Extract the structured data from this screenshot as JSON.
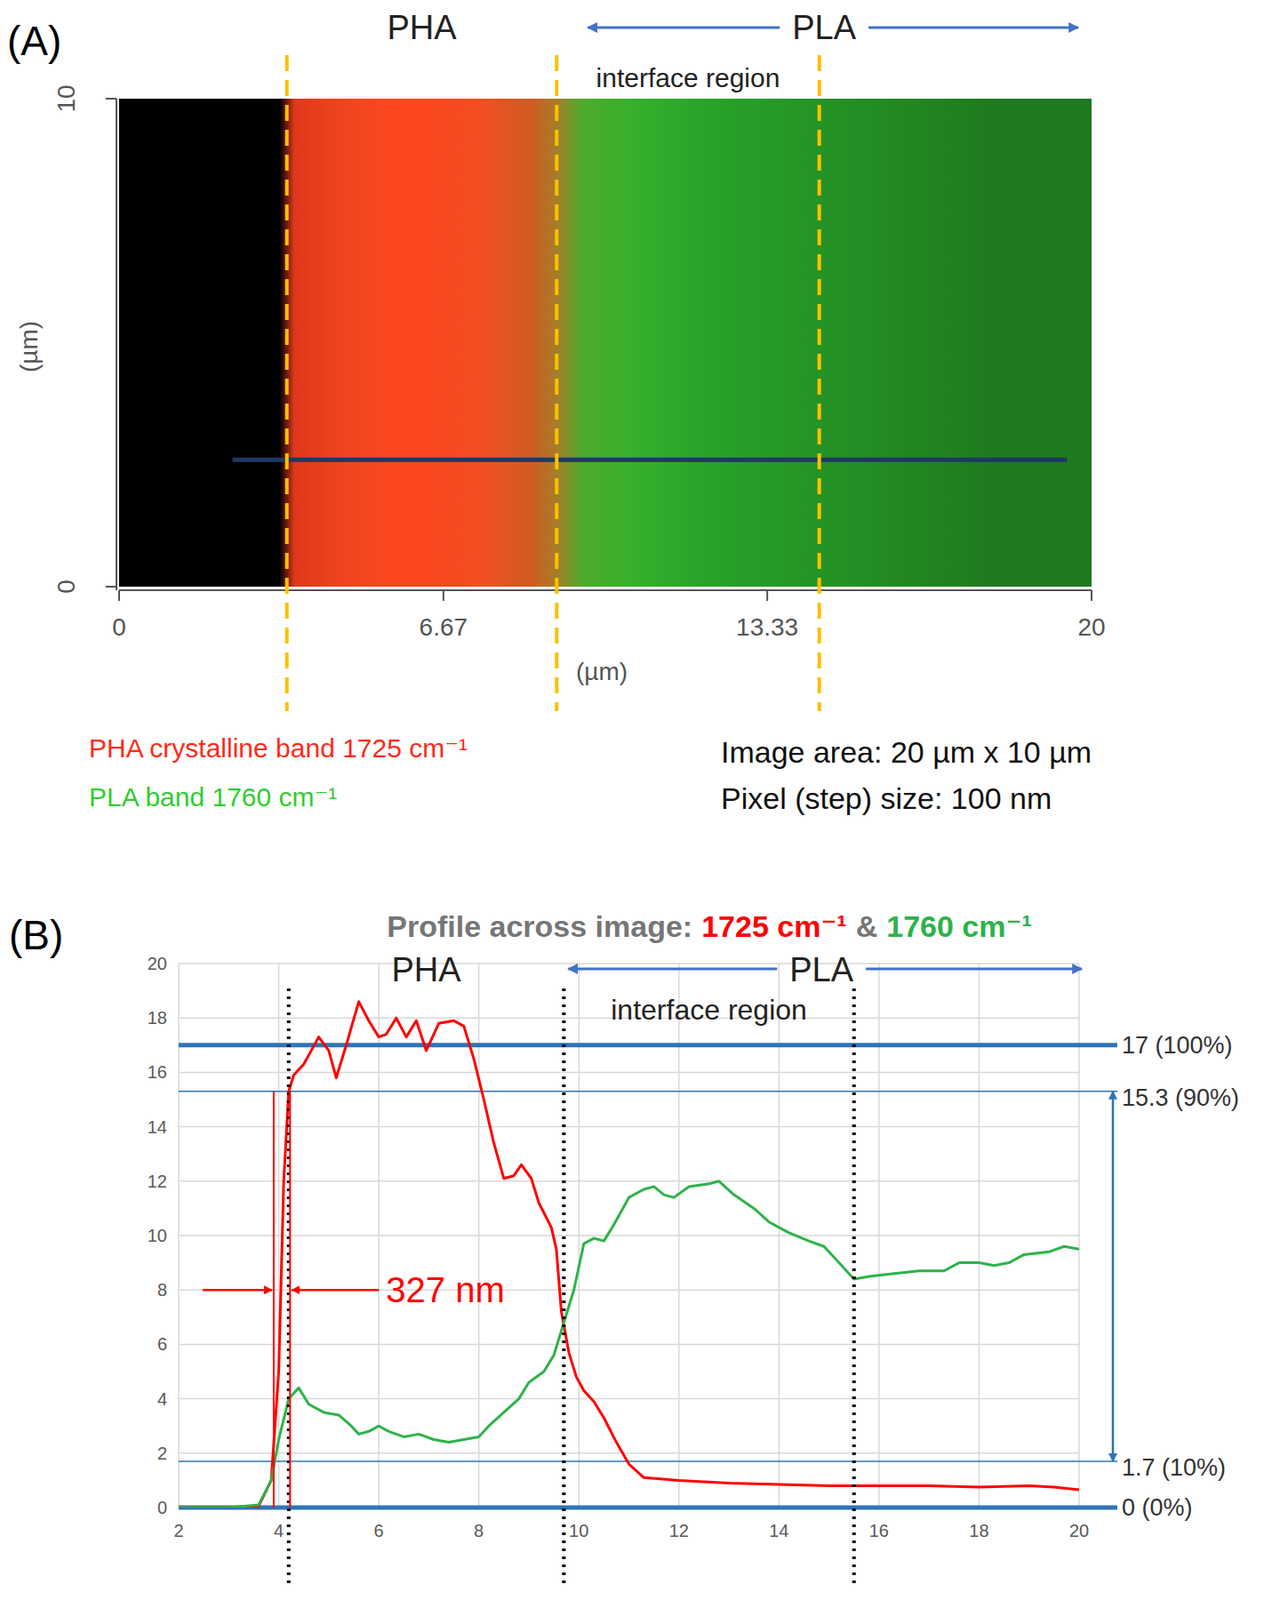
{
  "chart_data": [
    {
      "type": "image",
      "panel_label": "(A)",
      "xlabel": "(µm)",
      "ylabel": "(µm)",
      "xlim": [
        0,
        20
      ],
      "ylim": [
        0,
        10
      ],
      "xticks": [
        0,
        6.67,
        13.33,
        20
      ],
      "yticks": [
        0,
        10
      ],
      "x": [
        0,
        3.3,
        3.6,
        4.5,
        5.5,
        6.5,
        7.5,
        8.5,
        9.0,
        9.5,
        10.5,
        12,
        13.5,
        15,
        16.5,
        18,
        20
      ],
      "series": [
        {
          "name": "PHA crystalline band 1725 cm⁻¹",
          "color": "#ff2a1a",
          "values": [
            0,
            0,
            0.85,
            0.9,
            0.95,
            0.95,
            0.9,
            0.75,
            0.55,
            0.15,
            0.05,
            0,
            0,
            0,
            0,
            0,
            0
          ]
        },
        {
          "name": "PLA band 1760 cm⁻¹",
          "color": "#33cc33",
          "values": [
            0,
            0,
            0.1,
            0.15,
            0.15,
            0.15,
            0.2,
            0.3,
            0.5,
            0.8,
            0.85,
            0.8,
            0.75,
            0.7,
            0.65,
            0.6,
            0.6
          ]
        }
      ],
      "labels": {
        "pha": "PHA",
        "pla": "PLA",
        "interface": "interface region"
      },
      "dividers": [
        3.45,
        9.0,
        14.4
      ],
      "profile_line": {
        "y": 2.6,
        "x": [
          2.33,
          19.5
        ]
      },
      "notes": [
        "Image area: 20 µm x 10 µm",
        "Pixel (step) size: 100 nm"
      ]
    },
    {
      "type": "line",
      "panel_label": "(B)",
      "title": "Profile across image:",
      "title_joiner": "&",
      "xlim": [
        2,
        20
      ],
      "ylim": [
        0,
        20
      ],
      "xticks": [
        2,
        4,
        6,
        8,
        10,
        12,
        14,
        16,
        18,
        20
      ],
      "yticks": [
        0,
        2,
        4,
        6,
        8,
        10,
        12,
        14,
        16,
        18,
        20
      ],
      "grid": true,
      "series": [
        {
          "name": "1725 cm⁻¹",
          "color": "#ff0000",
          "x": [
            2,
            3,
            3.6,
            3.85,
            4.0,
            4.1,
            4.2,
            4.3,
            4.5,
            4.8,
            5.0,
            5.15,
            5.35,
            5.6,
            5.8,
            6.0,
            6.15,
            6.35,
            6.55,
            6.75,
            6.95,
            7.2,
            7.5,
            7.7,
            7.9,
            8.1,
            8.3,
            8.5,
            8.7,
            8.85,
            9.05,
            9.2,
            9.45,
            9.55,
            9.65,
            9.8,
            9.95,
            10.1,
            10.3,
            10.5,
            10.75,
            11,
            11.3,
            12,
            13,
            14,
            15,
            16,
            17,
            18,
            19,
            19.5,
            20
          ],
          "values": [
            0,
            0,
            0.05,
            1,
            5,
            12,
            15.3,
            15.9,
            16.3,
            17.3,
            16.8,
            15.8,
            17,
            18.6,
            17.9,
            17.3,
            17.4,
            18,
            17.3,
            17.9,
            16.8,
            17.8,
            17.9,
            17.7,
            16.5,
            15,
            13.4,
            12.1,
            12.2,
            12.6,
            12.1,
            11.2,
            10.3,
            9.5,
            7.2,
            5.7,
            4.8,
            4.3,
            3.9,
            3.3,
            2.4,
            1.6,
            1.1,
            1.0,
            0.9,
            0.85,
            0.8,
            0.8,
            0.8,
            0.75,
            0.8,
            0.75,
            0.65
          ]
        },
        {
          "name": "1760 cm⁻¹",
          "color": "#2db34a",
          "x": [
            2,
            3,
            3.6,
            3.85,
            4.0,
            4.2,
            4.4,
            4.6,
            4.9,
            5.2,
            5.45,
            5.6,
            5.8,
            6.0,
            6.2,
            6.5,
            6.8,
            7.1,
            7.4,
            7.7,
            8.0,
            8.2,
            8.5,
            8.8,
            9.0,
            9.3,
            9.5,
            9.7,
            9.9,
            10.1,
            10.3,
            10.5,
            10.7,
            11,
            11.3,
            11.5,
            11.7,
            11.9,
            12.2,
            12.6,
            12.8,
            13.1,
            13.5,
            13.8,
            14.2,
            14.6,
            14.9,
            15.2,
            15.5,
            15.8,
            16.3,
            16.8,
            17.3,
            17.6,
            18,
            18.3,
            18.6,
            18.9,
            19.4,
            19.7,
            20
          ],
          "values": [
            0,
            0,
            0.1,
            1,
            2.5,
            4.0,
            4.4,
            3.8,
            3.5,
            3.4,
            3.0,
            2.7,
            2.8,
            3.0,
            2.8,
            2.6,
            2.7,
            2.5,
            2.4,
            2.5,
            2.6,
            3.0,
            3.5,
            4.0,
            4.6,
            5.0,
            5.6,
            6.8,
            8.0,
            9.7,
            9.9,
            9.8,
            10.4,
            11.4,
            11.7,
            11.8,
            11.5,
            11.4,
            11.8,
            11.9,
            12.0,
            11.5,
            11.0,
            10.5,
            10.1,
            9.8,
            9.6,
            9.0,
            8.4,
            8.5,
            8.6,
            8.7,
            8.7,
            9.0,
            9.0,
            8.9,
            9.0,
            9.3,
            9.4,
            9.6,
            9.5
          ]
        }
      ],
      "labels": {
        "pha": "PHA",
        "pla": "PLA",
        "interface": "interface region"
      },
      "dividers": [
        4.2,
        9.7,
        15.5
      ],
      "reference_lines": [
        {
          "value": 17,
          "label": "17 (100%)",
          "line_style": "thick"
        },
        {
          "value": 15.3,
          "label": "15.3 (90%)",
          "line_style": "thin"
        },
        {
          "value": 1.7,
          "label": "1.7 (10%)",
          "line_style": "thin"
        },
        {
          "value": 0,
          "label": "0 (0%)",
          "line_style": "thick"
        }
      ],
      "width_annotation": {
        "label": "327 nm",
        "x": [
          3.9,
          4.227
        ],
        "y": 8
      }
    }
  ]
}
